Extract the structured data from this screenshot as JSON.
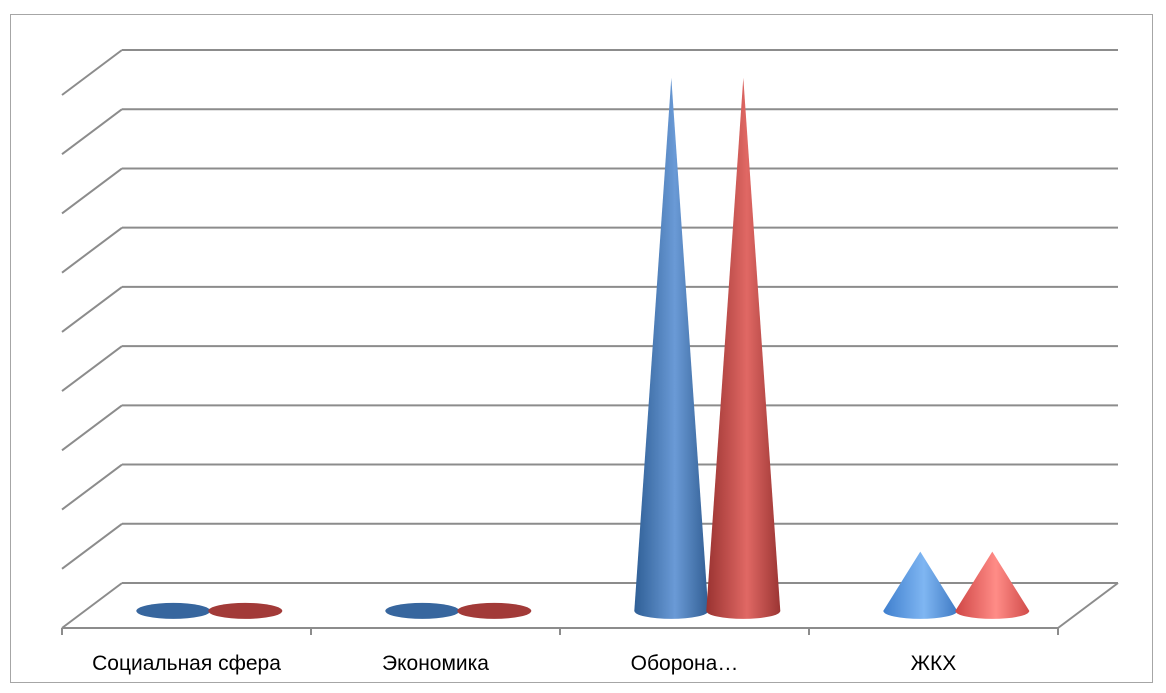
{
  "chart_data": {
    "type": "bar",
    "subtype": "3d-cone",
    "title": "",
    "xlabel": "",
    "ylabel": "",
    "categories": [
      "Социальная сфера",
      "Экономика",
      "Оборона…",
      "ЖКХ"
    ],
    "series": [
      {
        "values": [
          0,
          0,
          9,
          1
        ],
        "color": "#4f81bd"
      },
      {
        "values": [
          0,
          0,
          9,
          1
        ],
        "color": "#c0504d"
      }
    ],
    "ylim": [
      0,
      9
    ],
    "y_ticks": 9,
    "grid": true,
    "legend": "none"
  }
}
